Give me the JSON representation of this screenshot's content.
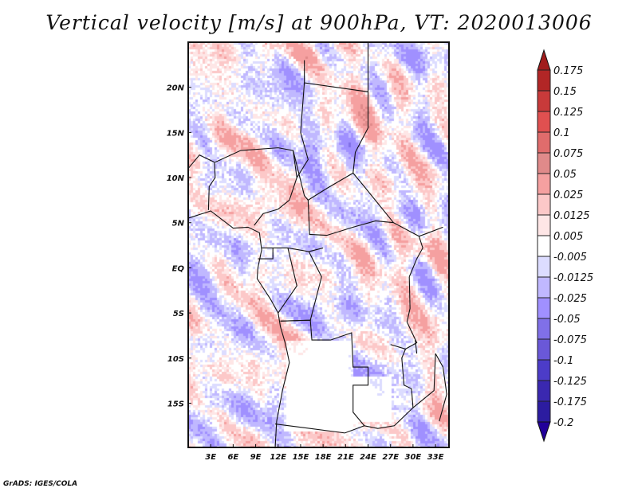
{
  "title": "Vertical velocity [m/s] at 900hPa, VT: 2020013006",
  "credit": "GrADS: IGES/COLA",
  "chart_data": {
    "type": "heatmap",
    "title": "Vertical velocity [m/s] at 900hPa, VT: 2020013006",
    "variable": "vertical velocity",
    "units": "m/s",
    "level": "900hPa",
    "valid_time": "2020013006",
    "lon_range": [
      0,
      34.8
    ],
    "lat_range": [
      -19.9,
      25
    ],
    "x_ticks": [
      {
        "v": 3,
        "label": "3E"
      },
      {
        "v": 6,
        "label": "6E"
      },
      {
        "v": 9,
        "label": "9E"
      },
      {
        "v": 12,
        "label": "12E"
      },
      {
        "v": 15,
        "label": "15E"
      },
      {
        "v": 18,
        "label": "18E"
      },
      {
        "v": 21,
        "label": "21E"
      },
      {
        "v": 24,
        "label": "24E"
      },
      {
        "v": 27,
        "label": "27E"
      },
      {
        "v": 30,
        "label": "30E"
      },
      {
        "v": 33,
        "label": "33E"
      }
    ],
    "y_ticks": [
      {
        "v": 20,
        "label": "20N"
      },
      {
        "v": 15,
        "label": "15N"
      },
      {
        "v": 10,
        "label": "10N"
      },
      {
        "v": 5,
        "label": "5N"
      },
      {
        "v": 0,
        "label": "EQ"
      },
      {
        "v": -5,
        "label": "5S"
      },
      {
        "v": -10,
        "label": "10S"
      },
      {
        "v": -15,
        "label": "15S"
      }
    ],
    "colorbar": {
      "levels": [
        "0.175",
        "0.15",
        "0.125",
        "0.1",
        "0.075",
        "0.05",
        "0.025",
        "0.0125",
        "0.005",
        "-0.005",
        "-0.0125",
        "-0.025",
        "-0.05",
        "-0.075",
        "-0.1",
        "-0.125",
        "-0.175",
        "-0.2"
      ],
      "level_values": [
        0.175,
        0.15,
        0.125,
        0.1,
        0.075,
        0.05,
        0.025,
        0.0125,
        0.005,
        -0.005,
        -0.0125,
        -0.025,
        -0.05,
        -0.075,
        -0.1,
        -0.125,
        -0.175,
        -0.2
      ],
      "colors": [
        "#a01c1c",
        "#b22626",
        "#c83a3a",
        "#e05050",
        "#e06c6c",
        "#e08a8a",
        "#f5a0a0",
        "#fcc8c8",
        "#fee6e6",
        "#ffffff",
        "#dcdcff",
        "#c0b8ff",
        "#a090ff",
        "#8070e8",
        "#6a58d8",
        "#4c3cc8",
        "#3a28b0",
        "#2c1ca0",
        "#22009a"
      ]
    }
  }
}
